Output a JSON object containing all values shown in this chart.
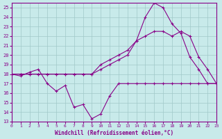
{
  "xlabel": "Windchill (Refroidissement éolien,°C)",
  "bg_color": "#c8eaea",
  "grid_color": "#a0c8c8",
  "line_color": "#880088",
  "xlim": [
    0,
    23
  ],
  "ylim": [
    13,
    25.5
  ],
  "yticks": [
    13,
    14,
    15,
    16,
    17,
    18,
    19,
    20,
    21,
    22,
    23,
    24,
    25
  ],
  "xticks": [
    0,
    1,
    2,
    3,
    4,
    5,
    6,
    7,
    8,
    9,
    10,
    11,
    12,
    13,
    14,
    15,
    16,
    17,
    18,
    19,
    20,
    21,
    22,
    23
  ],
  "line1_x": [
    0,
    1,
    2,
    3,
    4,
    5,
    6,
    7,
    8,
    9,
    10,
    11,
    12,
    13,
    14,
    15,
    16,
    17,
    18,
    19,
    20,
    21,
    22,
    23
  ],
  "line1_y": [
    18.0,
    17.8,
    18.2,
    18.5,
    17.0,
    16.2,
    16.8,
    14.5,
    14.8,
    13.3,
    13.8,
    15.7,
    17.0,
    17.0,
    17.0,
    17.0,
    17.0,
    17.0,
    17.0,
    17.0,
    17.0,
    17.0,
    17.0,
    17.0
  ],
  "line2_x": [
    0,
    1,
    2,
    3,
    4,
    5,
    6,
    7,
    8,
    9,
    10,
    11,
    12,
    13,
    14,
    15,
    16,
    17,
    18,
    19,
    20,
    21,
    22,
    23
  ],
  "line2_y": [
    18.0,
    18.0,
    18.0,
    18.0,
    18.0,
    18.0,
    18.0,
    18.0,
    18.0,
    18.0,
    19.0,
    19.5,
    20.0,
    20.5,
    21.5,
    22.0,
    22.5,
    22.5,
    22.0,
    22.5,
    22.0,
    19.8,
    18.5,
    17.0
  ],
  "line3_x": [
    0,
    1,
    2,
    3,
    4,
    5,
    6,
    7,
    8,
    9,
    10,
    11,
    12,
    13,
    14,
    15,
    16,
    17,
    18,
    19,
    20,
    21,
    22,
    23
  ],
  "line3_y": [
    18.0,
    18.0,
    18.0,
    18.0,
    18.0,
    18.0,
    18.0,
    18.0,
    18.0,
    18.0,
    18.5,
    19.0,
    19.5,
    20.0,
    21.5,
    24.0,
    25.5,
    25.0,
    23.3,
    22.3,
    19.8,
    18.5,
    17.0,
    17.0
  ]
}
